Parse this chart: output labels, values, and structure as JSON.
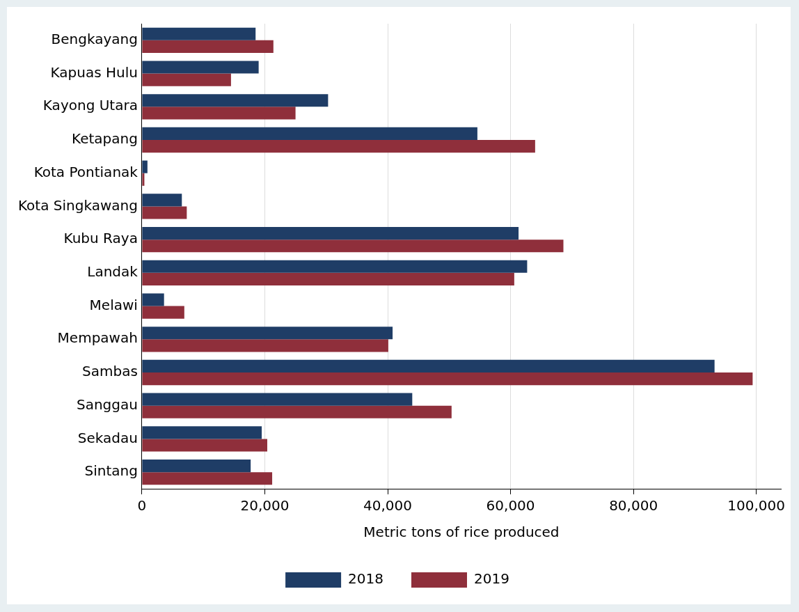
{
  "chart_data": {
    "type": "bar",
    "orientation": "horizontal",
    "xlabel": "Metric tons of rice produced",
    "categories": [
      "Bengkayang",
      "Kapuas Hulu",
      "Kayong Utara",
      "Ketapang",
      "Kota Pontianak",
      "Kota Singkawang",
      "Kubu Raya",
      "Landak",
      "Melawi",
      "Mempawah",
      "Sambas",
      "Sanggau",
      "Sekadau",
      "Sintang"
    ],
    "series": [
      {
        "name": "2018",
        "color": "#1f3d66",
        "values": [
          18500,
          19000,
          30300,
          54600,
          900,
          6500,
          61300,
          62700,
          3600,
          40800,
          93200,
          44000,
          19500,
          17700
        ]
      },
      {
        "name": "2019",
        "color": "#8f2f3b",
        "values": [
          21400,
          14500,
          25000,
          64000,
          400,
          7300,
          68600,
          60600,
          6900,
          40100,
          99400,
          50400,
          20400,
          21200
        ]
      }
    ],
    "xlim": [
      0,
      104000
    ],
    "xticks": [
      {
        "value": 0,
        "label": "0"
      },
      {
        "value": 20000,
        "label": "20,000"
      },
      {
        "value": 40000,
        "label": "40,000"
      },
      {
        "value": 60000,
        "label": "60,000"
      },
      {
        "value": 80000,
        "label": "80,000"
      },
      {
        "value": 100000,
        "label": "100,000"
      }
    ],
    "grid": "x",
    "legend": "bottom"
  }
}
